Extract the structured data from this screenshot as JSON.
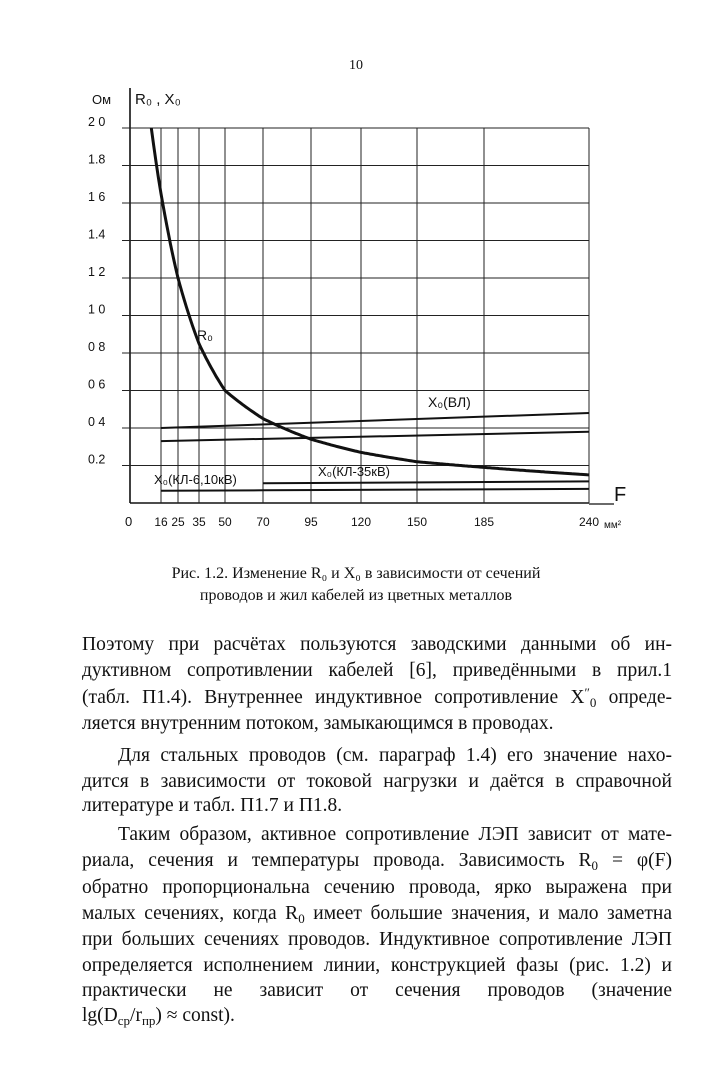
{
  "page_number": "10",
  "figure": {
    "caption_line1": "Рис. 1.2. Изменение R₀ и X₀ в зависимости от сечений",
    "caption_line2": "проводов и жил кабелей из цветных металлов"
  },
  "chart_data": {
    "type": "line",
    "y_unit": "Ом",
    "ylabel": "R₀ , X₀",
    "xlabel": "F",
    "x_unit": "мм²",
    "origin_label": "0",
    "x_ticks": [
      16,
      25,
      35,
      50,
      70,
      95,
      120,
      150,
      185,
      240
    ],
    "y_ticks": [
      "0.2",
      "0 4",
      "0 6",
      "0 8",
      "1 0",
      "1 2",
      "1.4",
      "1 6",
      "1.8",
      "2 0"
    ],
    "y_tick_values": [
      0.2,
      0.4,
      0.6,
      0.8,
      1.0,
      1.2,
      1.4,
      1.6,
      1.8,
      2.0
    ],
    "ylim": [
      0,
      2.0
    ],
    "xlim": [
      0,
      240
    ],
    "grid": true,
    "series": [
      {
        "name": "R₀",
        "x": [
          12,
          16,
          25,
          35,
          50,
          70,
          95,
          120,
          150,
          185,
          240
        ],
        "y": [
          2.0,
          1.65,
          1.2,
          0.85,
          0.6,
          0.45,
          0.34,
          0.27,
          0.22,
          0.19,
          0.15
        ]
      },
      {
        "name": "X₀(ВЛ)",
        "x": [
          16,
          240
        ],
        "y": [
          0.4,
          0.48
        ]
      },
      {
        "x": [
          16,
          240
        ],
        "y": [
          0.33,
          0.38
        ]
      },
      {
        "name": "X₀(КЛ-35кВ)",
        "x": [
          70,
          240
        ],
        "y": [
          0.105,
          0.115
        ]
      },
      {
        "name": "X₀(КЛ-6,10кВ)",
        "x": [
          16,
          70,
          240
        ],
        "y": [
          0.065,
          0.068,
          0.075
        ]
      }
    ],
    "colors": {
      "ink": "#111111"
    }
  },
  "body": {
    "paragraphs": [
      {
        "lines": [
          [
            {
              "t": "Поэтому при  расчётах пользуются заводскими данными об ин-"
            }
          ],
          [
            {
              "t": "дуктивном сопротивлении кабелей [6], приведёнными в прил.1"
            }
          ],
          [
            {
              "t": "(табл. П1.4). Внутреннее индуктивное сопротивление X"
            },
            {
              "t": "″",
              "s": "sup"
            },
            {
              "t": "0",
              "s": "sub"
            },
            {
              "t": " опреде-"
            }
          ],
          [
            {
              "t": "ляется внутренним потоком, замыкающимся в проводах."
            }
          ]
        ]
      },
      {
        "lines": [
          [
            {
              "t": "Для стальных проводов (см. параграф 1.4) его значение нахо-"
            }
          ],
          [
            {
              "t": "дится в  зависимости от токовой нагрузки и даётся в справочной"
            }
          ],
          [
            {
              "t": "литературе и табл. П1.7 и  П1.8."
            }
          ]
        ]
      },
      {
        "lines": [
          [
            {
              "t": "Таким образом, активное сопротивление ЛЭП зависит от мате-"
            }
          ],
          [
            {
              "t": "риала, сечения и температуры провода. Зависимость  R"
            },
            {
              "t": "0",
              "s": "sub"
            },
            {
              "t": " = φ(F)"
            }
          ],
          [
            {
              "t": "обратно пропорциональна сечению провода, ярко выражена при"
            }
          ],
          [
            {
              "t": "малых сечениях, когда R"
            },
            {
              "t": "0",
              "s": "sub"
            },
            {
              "t": " имеет большие значения, и мало заметна"
            }
          ],
          [
            {
              "t": "при больших сечениях проводов. Индуктивное сопротивление ЛЭП"
            }
          ],
          [
            {
              "t": "определяется исполнением линии, конструкцией фазы (рис. 1.2) и"
            }
          ],
          [
            {
              "t": "практически не зависит от сечения проводов (значение"
            }
          ],
          [
            {
              "t": "lg(D"
            },
            {
              "t": "ср",
              "s": "sub"
            },
            {
              "t": "/r"
            },
            {
              "t": "пр",
              "s": "sub"
            },
            {
              "t": ") ≈ const)."
            }
          ]
        ]
      }
    ]
  }
}
